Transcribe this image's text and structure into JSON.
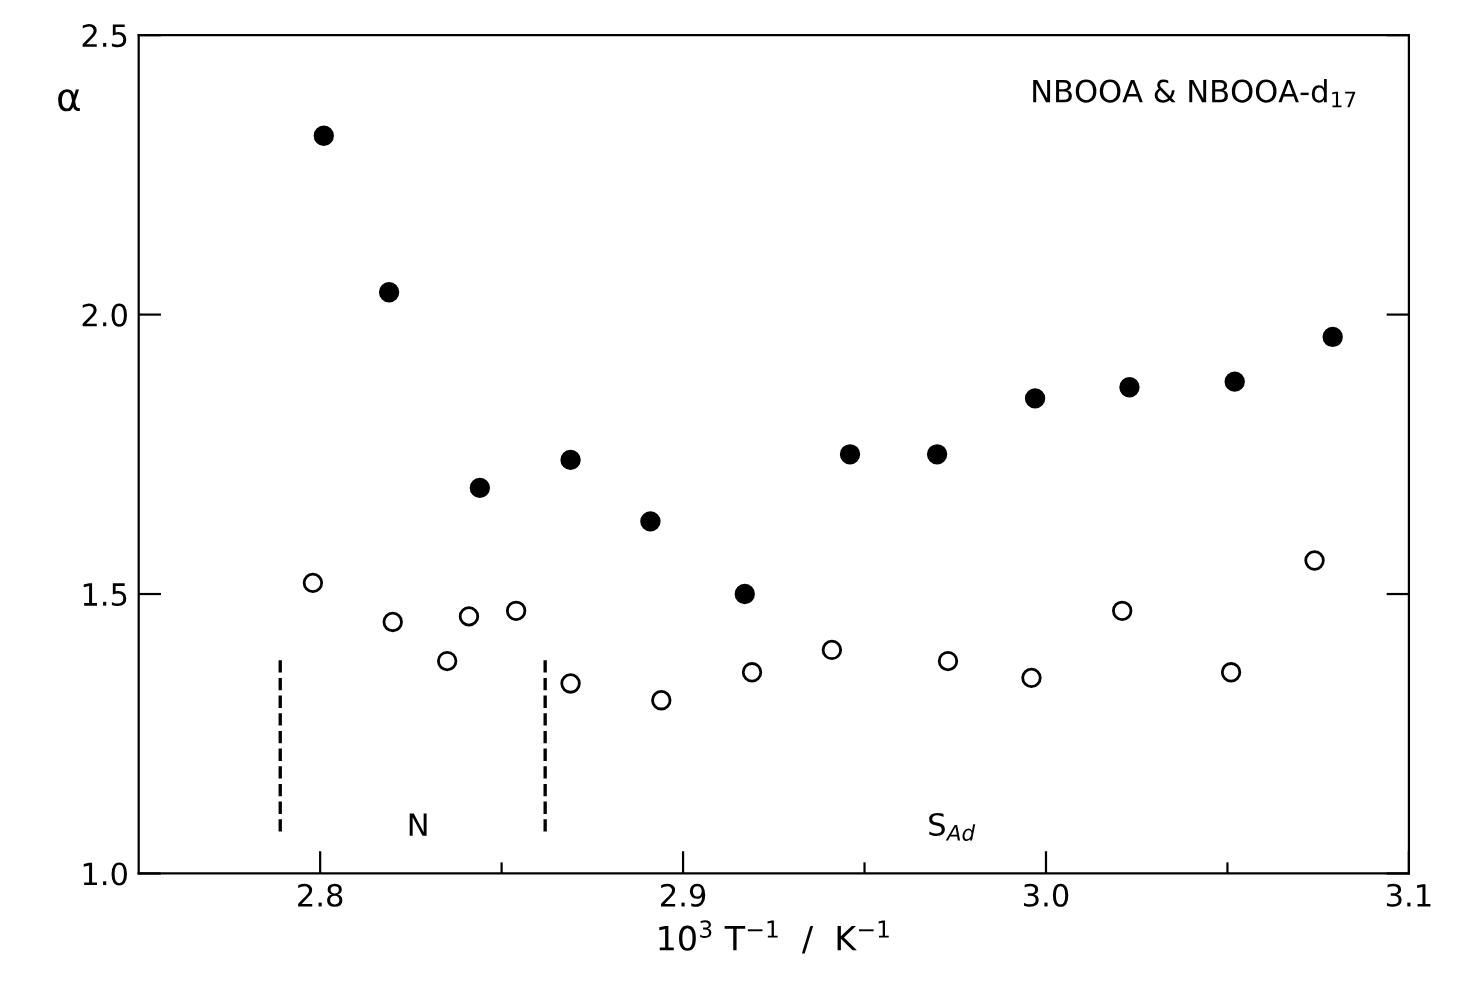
{
  "chart_data": {
    "type": "scatter",
    "xlabel": "10$^{3}$ T$^{−1}$  /  K$^{−1}$",
    "ylabel": "α",
    "xlim": [
      2.75,
      3.1
    ],
    "xticks": [
      2.8,
      {
        "value": 2.85,
        "label": null
      },
      2.9,
      {
        "value": 2.95,
        "label": null
      },
      {
        "value": 3.0,
        "label": "3.0"
      },
      {
        "value": 3.05,
        "label": null
      },
      3.1
    ],
    "ylim": [
      1.0,
      2.5
    ],
    "yticks": [
      {
        "value": 1.0,
        "label": "1.0"
      },
      1.5,
      {
        "value": 2.0,
        "label": "2.0"
      },
      2.5
    ],
    "grid": false,
    "legend": false,
    "marker": "circle",
    "series": [
      {
        "color": "#000000",
        "x": [
          2.801,
          2.819,
          2.844,
          2.869,
          2.891,
          2.917,
          2.946,
          2.97,
          2.997,
          3.023,
          3.052,
          3.079
        ],
        "values": [
          2.32,
          2.04,
          1.69,
          1.74,
          1.63,
          1.5,
          1.75,
          1.75,
          1.85,
          1.87,
          1.88,
          1.96
        ]
      },
      {
        "color": "#ffffff",
        "x": [
          2.798,
          2.82,
          2.835,
          2.841,
          2.854,
          2.869,
          2.894,
          2.919,
          2.941,
          2.973,
          2.996,
          3.021,
          3.051,
          3.074
        ],
        "values": [
          1.52,
          1.45,
          1.38,
          1.46,
          1.47,
          1.34,
          1.31,
          1.36,
          1.4,
          1.38,
          1.35,
          1.47,
          1.36,
          1.56
        ]
      }
    ],
    "ref_lines": [
      {
        "axis": "x",
        "value": 2.789,
        "line_style": "dashed",
        "color": "#000000"
      },
      {
        "axis": "x",
        "value": 2.862,
        "line_style": "dashed",
        "color": "#000000"
      }
    ],
    "annotations": [
      "NBOOA & NBOOA-d$_{17}$",
      "N",
      "S$_{Ad}$"
    ]
  }
}
